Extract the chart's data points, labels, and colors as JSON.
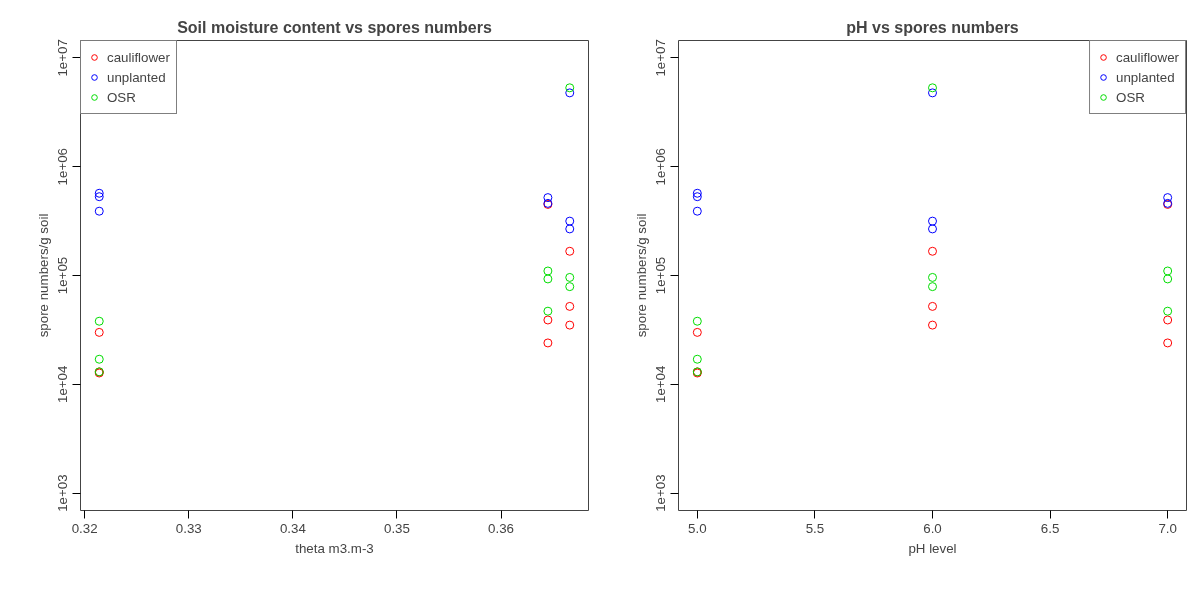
{
  "chart_data": [
    {
      "type": "scatter",
      "title": "Soil moisture content vs spores numbers",
      "xlabel": "theta m3.m-3",
      "ylabel": "spore numbers/g soil",
      "log": "y",
      "grid": false,
      "legend": "top left",
      "marker": "circle",
      "xlim": [
        0.3196,
        0.3684
      ],
      "xticks": [
        0.32,
        0.33,
        0.34,
        0.35,
        0.36
      ],
      "ylim": [
        692,
        14450000
      ],
      "yticks": [
        {
          "value": 1000,
          "label": "1e+03"
        },
        {
          "value": 10000,
          "label": "1e+04"
        },
        {
          "value": 100000,
          "label": "1e+05"
        },
        {
          "value": 1000000,
          "label": "1e+06"
        },
        {
          "value": 10000000,
          "label": "1e+07"
        }
      ],
      "series": [
        {
          "name": "cauliflower",
          "color": "#ff0000",
          "x": [
            0.3214,
            0.3214,
            0.3214,
            0.3666,
            0.3666,
            0.3666,
            0.3645,
            0.3645,
            0.3645
          ],
          "values": [
            30000,
            13000,
            12700,
            167000,
            52000,
            35000,
            450000,
            39000,
            24000
          ]
        },
        {
          "name": "unplanted",
          "color": "#0000ff",
          "x": [
            0.3214,
            0.3214,
            0.3214,
            0.3666,
            0.3666,
            0.3666,
            0.3645,
            0.3645
          ],
          "values": [
            570000,
            530000,
            390000,
            4770000,
            316000,
            268000,
            520000,
            460000
          ]
        },
        {
          "name": "OSR",
          "color": "#00dd00",
          "x": [
            0.3214,
            0.3214,
            0.3214,
            0.3666,
            0.3666,
            0.3666,
            0.3645,
            0.3645,
            0.3645
          ],
          "values": [
            38000,
            17000,
            13000,
            5310000,
            96000,
            79000,
            110000,
            93000,
            47000
          ]
        }
      ]
    },
    {
      "type": "scatter",
      "title": "pH vs spores numbers",
      "xlabel": "pH level",
      "ylabel": "spore numbers/g soil",
      "log": "y",
      "grid": false,
      "legend": "top right",
      "marker": "circle",
      "xlim": [
        4.92,
        7.08
      ],
      "xticks": [
        {
          "value": 5,
          "label": "5.0"
        },
        5.5,
        {
          "value": 6,
          "label": "6.0"
        },
        6.5,
        {
          "value": 7,
          "label": "7.0"
        }
      ],
      "ylim": [
        692,
        14450000
      ],
      "yticks": [
        {
          "value": 1000,
          "label": "1e+03"
        },
        {
          "value": 10000,
          "label": "1e+04"
        },
        {
          "value": 100000,
          "label": "1e+05"
        },
        {
          "value": 1000000,
          "label": "1e+06"
        },
        {
          "value": 10000000,
          "label": "1e+07"
        }
      ],
      "series": [
        {
          "name": "cauliflower",
          "color": "#ff0000",
          "x": [
            5,
            5,
            5,
            6,
            6,
            6,
            7,
            7,
            7
          ],
          "values": [
            30000,
            13000,
            12700,
            167000,
            52000,
            35000,
            450000,
            39000,
            24000
          ]
        },
        {
          "name": "unplanted",
          "color": "#0000ff",
          "x": [
            5,
            5,
            5,
            6,
            6,
            6,
            7,
            7
          ],
          "values": [
            570000,
            530000,
            390000,
            4770000,
            316000,
            268000,
            520000,
            460000
          ]
        },
        {
          "name": "OSR",
          "color": "#00dd00",
          "x": [
            5,
            5,
            5,
            6,
            6,
            6,
            7,
            7,
            7
          ],
          "values": [
            38000,
            17000,
            13000,
            5310000,
            96000,
            79000,
            110000,
            93000,
            47000
          ]
        }
      ]
    }
  ]
}
